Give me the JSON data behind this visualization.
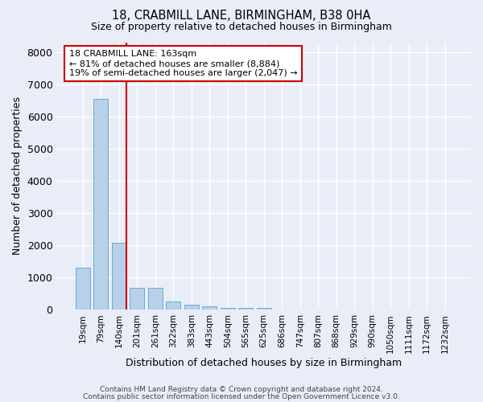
{
  "title1": "18, CRABMILL LANE, BIRMINGHAM, B38 0HA",
  "title2": "Size of property relative to detached houses in Birmingham",
  "xlabel": "Distribution of detached houses by size in Birmingham",
  "ylabel": "Number of detached properties",
  "categories": [
    "19sqm",
    "79sqm",
    "140sqm",
    "201sqm",
    "261sqm",
    "322sqm",
    "383sqm",
    "443sqm",
    "504sqm",
    "565sqm",
    "625sqm",
    "686sqm",
    "747sqm",
    "807sqm",
    "868sqm",
    "929sqm",
    "990sqm",
    "1050sqm",
    "1111sqm",
    "1172sqm",
    "1232sqm"
  ],
  "values": [
    1300,
    6550,
    2080,
    680,
    680,
    270,
    150,
    100,
    55,
    55,
    60,
    0,
    0,
    0,
    0,
    0,
    0,
    0,
    0,
    0,
    0
  ],
  "bar_color": "#b8d0e8",
  "bar_edge_color": "#6aaad4",
  "vline_color": "#cc0000",
  "annotation_line1": "18 CRABMILL LANE: 163sqm",
  "annotation_line2": "← 81% of detached houses are smaller (8,884)",
  "annotation_line3": "19% of semi-detached houses are larger (2,047) →",
  "annotation_box_color": "#cc0000",
  "annotation_text_fontsize": 8.0,
  "ylim_max": 8300,
  "yticks": [
    0,
    1000,
    2000,
    3000,
    4000,
    5000,
    6000,
    7000,
    8000
  ],
  "footer1": "Contains HM Land Registry data © Crown copyright and database right 2024.",
  "footer2": "Contains public sector information licensed under the Open Government Licence v3.0.",
  "bg_color": "#e8edf8",
  "plot_bg_color": "#e8edf8",
  "grid_color": "#ffffff",
  "title1_fontsize": 10.5,
  "title2_fontsize": 9.0
}
